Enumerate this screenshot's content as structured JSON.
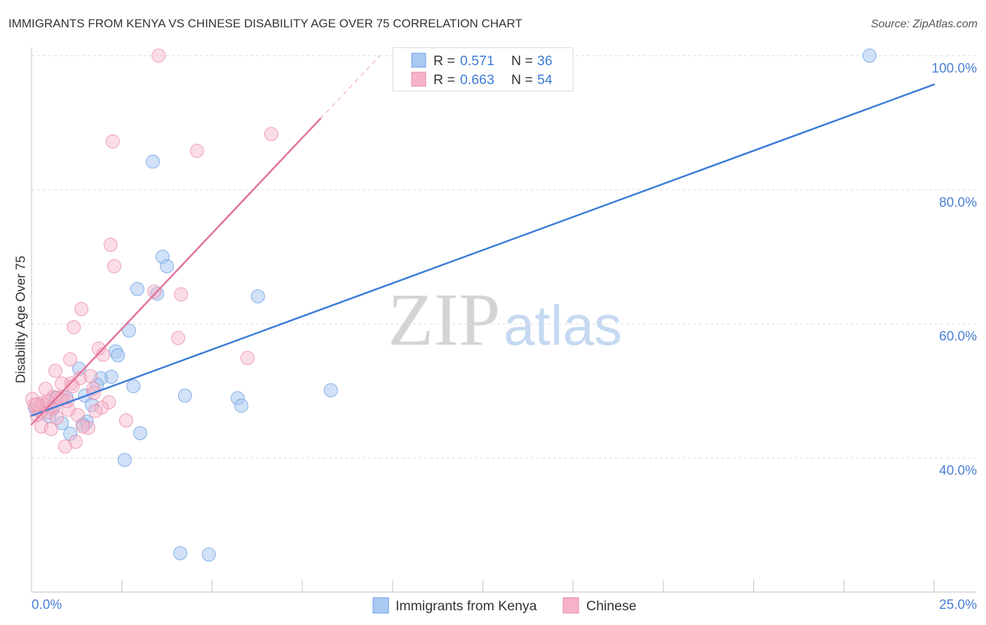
{
  "chart_data": {
    "type": "scatter",
    "title": "IMMIGRANTS FROM KENYA VS CHINESE DISABILITY AGE OVER 75 CORRELATION CHART",
    "source": "Source: ZipAtlas.com",
    "watermark": {
      "part1": "ZIP",
      "part2": "atlas"
    },
    "xlabel": "",
    "ylabel": "Disability Age Over 75",
    "xlim": [
      0,
      25
    ],
    "ylim": [
      20,
      103.7
    ],
    "x_tick_step": 2.5,
    "x_ticks": [
      {
        "value": 0,
        "label": "0.0%"
      },
      {
        "value": 25,
        "label": "25.0%"
      }
    ],
    "y_ticks": [
      {
        "value": 100,
        "label": "100.0%"
      },
      {
        "value": 80,
        "label": "80.0%"
      },
      {
        "value": 60,
        "label": "60.0%"
      },
      {
        "value": 40,
        "label": "40.0%"
      }
    ],
    "grid": true,
    "legend": {
      "placement": "top-center",
      "r_label": "R =",
      "n_label": "N =",
      "value_color": "#3b7dd8"
    },
    "series": [
      {
        "name": "Immigrants from Kenya",
        "color": "#3b7dd8",
        "marker_fill": "#a9c9f2",
        "marker_stroke": "#6b9fe0",
        "r": "0.571",
        "n": "36",
        "trend": {
          "intercept": 46.3,
          "slope": 1.976,
          "x_start": 0,
          "x_end": 25
        },
        "points": [
          [
            23.21,
            100.0
          ],
          [
            3.36,
            84.2
          ],
          [
            3.63,
            70.0
          ],
          [
            3.75,
            68.6
          ],
          [
            2.93,
            65.2
          ],
          [
            3.48,
            64.5
          ],
          [
            6.27,
            64.1
          ],
          [
            2.7,
            59.0
          ],
          [
            2.33,
            55.9
          ],
          [
            2.39,
            55.3
          ],
          [
            1.32,
            53.3
          ],
          [
            2.21,
            52.1
          ],
          [
            1.92,
            51.9
          ],
          [
            1.81,
            50.9
          ],
          [
            2.82,
            50.7
          ],
          [
            8.29,
            50.1
          ],
          [
            4.25,
            49.3
          ],
          [
            1.48,
            49.3
          ],
          [
            5.71,
            48.9
          ],
          [
            0.97,
            49.0
          ],
          [
            0.68,
            49.0
          ],
          [
            1.67,
            47.9
          ],
          [
            5.81,
            47.8
          ],
          [
            0.41,
            47.9
          ],
          [
            0.23,
            47.7
          ],
          [
            0.1,
            47.4
          ],
          [
            0.58,
            47.3
          ],
          [
            0.49,
            46.2
          ],
          [
            1.53,
            45.4
          ],
          [
            1.42,
            45.0
          ],
          [
            0.84,
            45.2
          ],
          [
            1.07,
            43.6
          ],
          [
            3.01,
            43.7
          ],
          [
            2.58,
            39.7
          ],
          [
            4.12,
            25.8
          ],
          [
            4.91,
            25.6
          ]
        ]
      },
      {
        "name": "Chinese",
        "color": "#e2719a",
        "marker_fill": "#f6b3c8",
        "marker_stroke": "#e88aa8",
        "r": "0.663",
        "n": "54",
        "trend": {
          "intercept": 45.0,
          "slope": 5.7,
          "x_start": 0,
          "x_end": 8.0,
          "dashed_x_end": 9.65
        },
        "points": [
          [
            3.52,
            100.0
          ],
          [
            6.64,
            88.3
          ],
          [
            2.25,
            87.2
          ],
          [
            4.58,
            85.8
          ],
          [
            2.19,
            71.8
          ],
          [
            2.29,
            68.6
          ],
          [
            3.4,
            64.8
          ],
          [
            4.14,
            64.4
          ],
          [
            1.38,
            62.2
          ],
          [
            1.17,
            59.5
          ],
          [
            4.06,
            57.9
          ],
          [
            1.86,
            56.3
          ],
          [
            1.98,
            55.4
          ],
          [
            1.07,
            54.7
          ],
          [
            5.98,
            54.9
          ],
          [
            0.66,
            53.0
          ],
          [
            1.63,
            52.2
          ],
          [
            1.34,
            51.9
          ],
          [
            1.09,
            51.1
          ],
          [
            0.84,
            51.1
          ],
          [
            0.39,
            50.3
          ],
          [
            1.14,
            50.7
          ],
          [
            1.71,
            50.3
          ],
          [
            1.73,
            49.7
          ],
          [
            0.6,
            49.1
          ],
          [
            0.87,
            49.1
          ],
          [
            0.72,
            49.0
          ],
          [
            0.02,
            48.8
          ],
          [
            0.99,
            48.5
          ],
          [
            2.14,
            48.3
          ],
          [
            0.35,
            47.9
          ],
          [
            1.94,
            47.5
          ],
          [
            0.52,
            47.4
          ],
          [
            0.19,
            47.2
          ],
          [
            1.77,
            47.0
          ],
          [
            0.45,
            46.8
          ],
          [
            1.28,
            46.4
          ],
          [
            0.14,
            46.4
          ],
          [
            2.62,
            45.6
          ],
          [
            0.27,
            44.7
          ],
          [
            0.54,
            44.3
          ],
          [
            1.57,
            44.5
          ],
          [
            1.42,
            44.7
          ],
          [
            1.22,
            42.4
          ],
          [
            0.93,
            41.7
          ],
          [
            0.3,
            48.2
          ],
          [
            0.08,
            47.9
          ],
          [
            0.62,
            47.6
          ],
          [
            0.8,
            48.8
          ],
          [
            0.25,
            46.9
          ],
          [
            0.45,
            48.4
          ],
          [
            1.02,
            47.2
          ],
          [
            0.15,
            48.0
          ],
          [
            0.7,
            46.0
          ]
        ]
      }
    ]
  }
}
